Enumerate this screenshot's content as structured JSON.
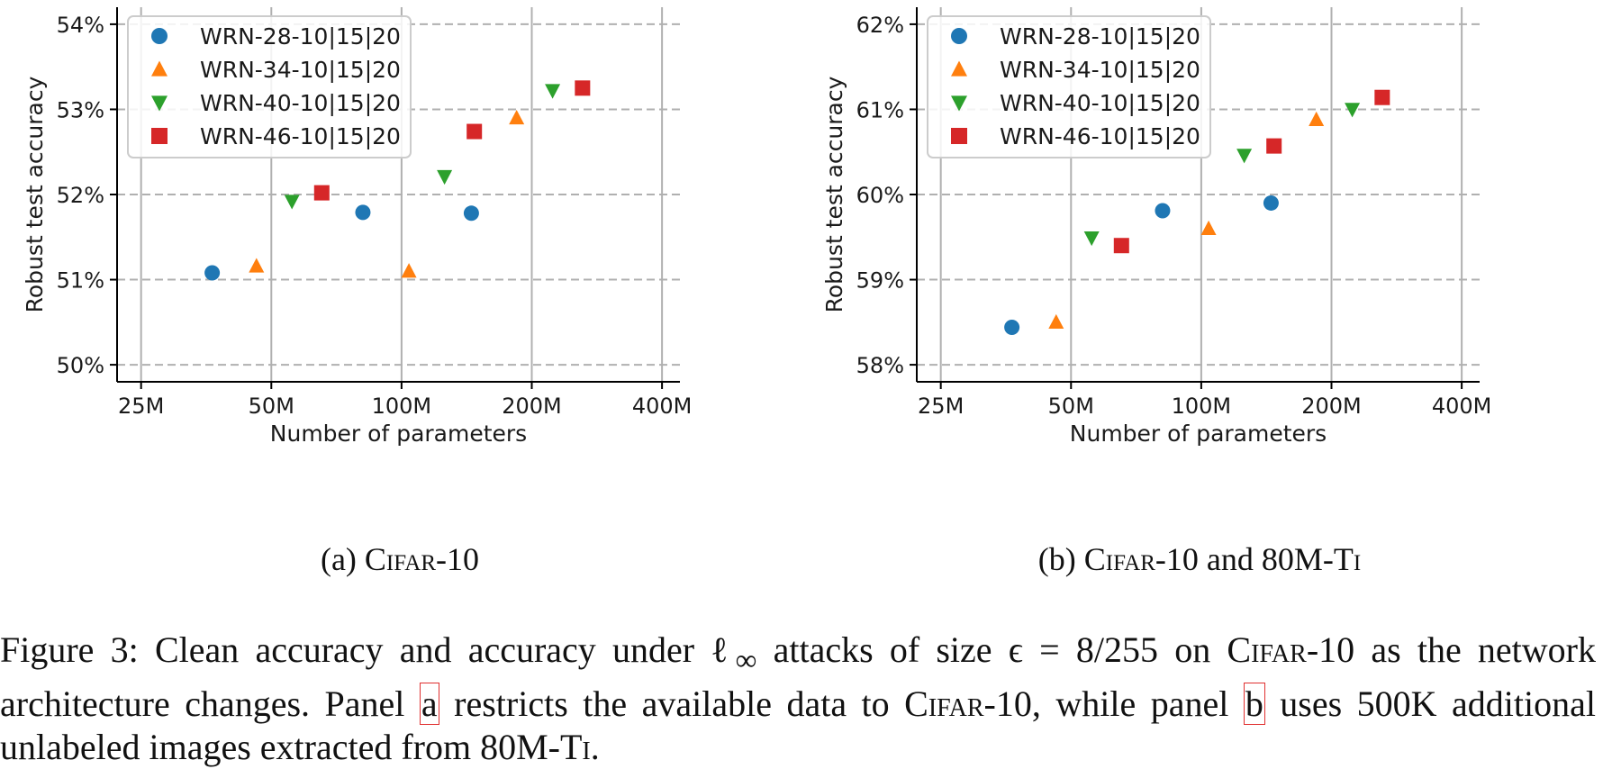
{
  "chart_data": [
    {
      "type": "scatter",
      "ylabel": "Robust test accuracy",
      "xlabel": "Number of parameters",
      "x_scale": "log",
      "xticks": [
        25,
        50,
        100,
        200,
        400
      ],
      "xtick_labels": [
        "25M",
        "50M",
        "100M",
        "200M",
        "400M"
      ],
      "yticks": [
        50,
        51,
        52,
        53,
        54
      ],
      "ytick_labels": [
        "50%",
        "51%",
        "52%",
        "53%",
        "54%"
      ],
      "ylim": [
        49.8,
        54.2
      ],
      "grid": true,
      "legend_position": "top-left",
      "series": [
        {
          "name": "WRN-28-10|15|20",
          "marker": "circle",
          "color": "#1f77b4",
          "x": [
            36.5,
            81.4,
            145.0
          ],
          "y": [
            51.08,
            51.79,
            51.78
          ]
        },
        {
          "name": "WRN-34-10|15|20",
          "marker": "triangle-up",
          "color": "#ff7f0e",
          "x": [
            46.2,
            104.0,
            184.5
          ],
          "y": [
            51.16,
            51.1,
            52.9
          ]
        },
        {
          "name": "WRN-40-10|15|20",
          "marker": "triangle-down",
          "color": "#2ca02c",
          "x": [
            55.8,
            125.7,
            223.4
          ],
          "y": [
            51.92,
            52.21,
            53.22
          ]
        },
        {
          "name": "WRN-46-10|15|20",
          "marker": "square",
          "color": "#d62728",
          "x": [
            65.4,
            147.3,
            262.0
          ],
          "y": [
            52.02,
            52.74,
            53.25
          ]
        }
      ]
    },
    {
      "type": "scatter",
      "ylabel": "Robust test accuracy",
      "xlabel": "Number of parameters",
      "x_scale": "log",
      "xticks": [
        25,
        50,
        100,
        200,
        400
      ],
      "xtick_labels": [
        "25M",
        "50M",
        "100M",
        "200M",
        "400M"
      ],
      "yticks": [
        58,
        59,
        60,
        61,
        62
      ],
      "ytick_labels": [
        "58%",
        "59%",
        "60%",
        "61%",
        "62%"
      ],
      "ylim": [
        57.8,
        62.2
      ],
      "grid": true,
      "legend_position": "top-left",
      "series": [
        {
          "name": "WRN-28-10|15|20",
          "marker": "circle",
          "color": "#1f77b4",
          "x": [
            36.5,
            81.4,
            145.0
          ],
          "y": [
            58.44,
            59.81,
            59.9
          ]
        },
        {
          "name": "WRN-34-10|15|20",
          "marker": "triangle-up",
          "color": "#ff7f0e",
          "x": [
            46.2,
            104.0,
            184.5
          ],
          "y": [
            58.5,
            59.6,
            60.88
          ]
        },
        {
          "name": "WRN-40-10|15|20",
          "marker": "triangle-down",
          "color": "#2ca02c",
          "x": [
            55.8,
            125.7,
            223.4
          ],
          "y": [
            59.49,
            60.46,
            61.0
          ]
        },
        {
          "name": "WRN-46-10|15|20",
          "marker": "square",
          "color": "#d62728",
          "x": [
            65.4,
            147.3,
            262.0
          ],
          "y": [
            59.4,
            60.57,
            61.14
          ]
        }
      ]
    }
  ],
  "subcaptions": {
    "a": {
      "prefix": "(a) ",
      "name": "Cifar-10",
      "suffix": ""
    },
    "b": {
      "prefix": "(b) ",
      "name": "Cifar-10",
      "middle": " and 80M-",
      "name2": "Ti"
    }
  },
  "caption": {
    "part1": "Figure 3: Clean accuracy and accuracy under ℓ",
    "sub": "∞",
    "part2": " attacks of size ϵ = 8/255 on ",
    "dataset1": "Cifar-10",
    "part3": " as the network architecture changes. Panel ",
    "ref_a": "a",
    "part4": " restricts the available data to ",
    "dataset2": "Cifar-10",
    "part5": ", while panel ",
    "ref_b": "b",
    "part6": " uses 500K additional unlabeled images extracted from 80M-",
    "dataset3": "Ti",
    "part7": "."
  }
}
